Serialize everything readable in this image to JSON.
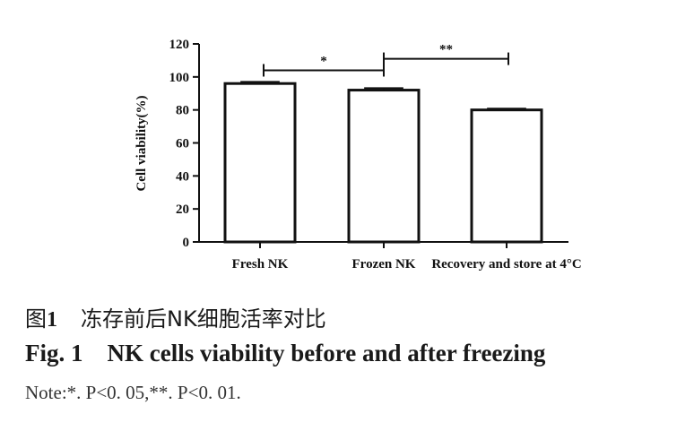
{
  "chart_data": {
    "type": "bar",
    "categories": [
      "Fresh NK",
      "Frozen NK",
      "Recovery and store at 4°C"
    ],
    "values": [
      96,
      92,
      80
    ],
    "errors": [
      1,
      1.2,
      0.8
    ],
    "ylabel": "Cell viability(%)",
    "xlabel": "",
    "ylim": [
      0,
      120
    ],
    "yticks": [
      0,
      20,
      40,
      60,
      80,
      100,
      120
    ],
    "significance": [
      {
        "from": 0,
        "to": 1,
        "y": 104,
        "label": "*"
      },
      {
        "from": 1,
        "to": 2,
        "y": 111,
        "label": "**"
      }
    ]
  },
  "caption": {
    "cn_label": "图",
    "cn_number": "1",
    "cn_text": "冻存前后NK细胞活率对比",
    "en_text": "Fig. 1    NK cells viability before and after freezing",
    "note": "Note:*. P<0. 05,**. P<0. 01."
  }
}
